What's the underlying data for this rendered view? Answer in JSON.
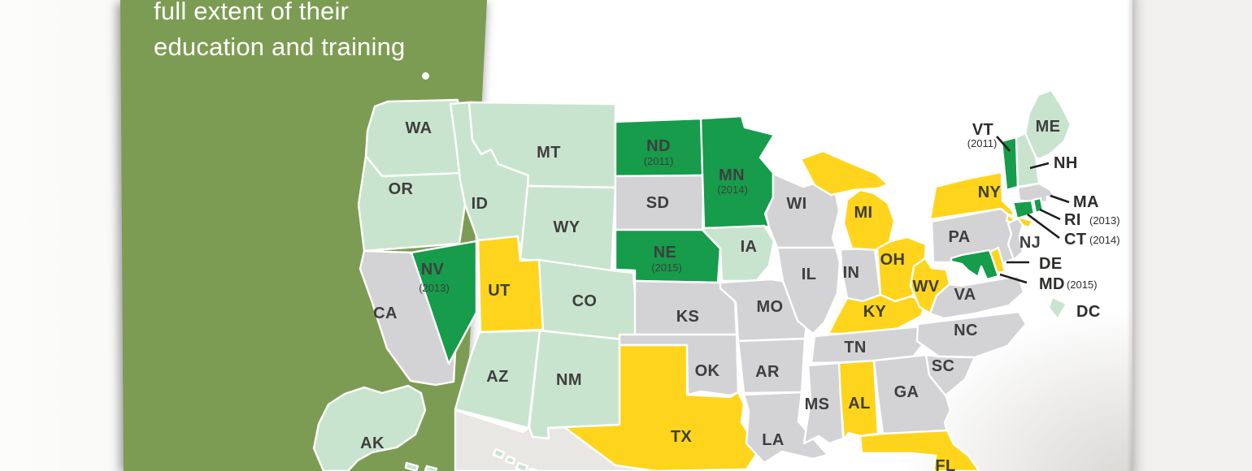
{
  "panel": {
    "background_color": "#7d9c53",
    "text_color": "#ffffff",
    "lines": [
      "full extent of their",
      "education and training"
    ]
  },
  "map": {
    "category_colors": {
      "dark_green": "#169c4b",
      "light_green": "#c9e4ce",
      "yellow": "#ffd41c",
      "gray": "#d3d2d4",
      "neighbor_land": "#e9e7e4"
    },
    "label_color": "#3e3e3e",
    "states": [
      {
        "id": "WA",
        "label": "WA",
        "category": "light_green"
      },
      {
        "id": "OR",
        "label": "OR",
        "category": "light_green"
      },
      {
        "id": "CA",
        "label": "CA",
        "category": "gray"
      },
      {
        "id": "NV",
        "label": "NV",
        "year": "(2013)",
        "category": "dark_green"
      },
      {
        "id": "ID",
        "label": "ID",
        "category": "light_green"
      },
      {
        "id": "MT",
        "label": "MT",
        "category": "light_green"
      },
      {
        "id": "WY",
        "label": "WY",
        "category": "light_green"
      },
      {
        "id": "UT",
        "label": "UT",
        "category": "yellow"
      },
      {
        "id": "CO",
        "label": "CO",
        "category": "light_green"
      },
      {
        "id": "AZ",
        "label": "AZ",
        "category": "light_green"
      },
      {
        "id": "NM",
        "label": "NM",
        "category": "light_green"
      },
      {
        "id": "AK",
        "label": "AK",
        "category": "light_green"
      },
      {
        "id": "HI",
        "label": "",
        "category": "light_green"
      },
      {
        "id": "ND",
        "label": "ND",
        "year": "(2011)",
        "category": "dark_green"
      },
      {
        "id": "SD",
        "label": "SD",
        "category": "gray"
      },
      {
        "id": "NE",
        "label": "NE",
        "year": "(2015)",
        "category": "dark_green"
      },
      {
        "id": "KS",
        "label": "KS",
        "category": "gray"
      },
      {
        "id": "OK",
        "label": "OK",
        "category": "gray"
      },
      {
        "id": "TX",
        "label": "TX",
        "category": "yellow"
      },
      {
        "id": "MN",
        "label": "MN",
        "year": "(2014)",
        "category": "dark_green"
      },
      {
        "id": "IA",
        "label": "IA",
        "category": "light_green"
      },
      {
        "id": "MO",
        "label": "MO",
        "category": "gray"
      },
      {
        "id": "AR",
        "label": "AR",
        "category": "gray"
      },
      {
        "id": "LA",
        "label": "LA",
        "category": "gray"
      },
      {
        "id": "WI",
        "label": "WI",
        "category": "gray"
      },
      {
        "id": "IL",
        "label": "IL",
        "category": "gray"
      },
      {
        "id": "IN",
        "label": "IN",
        "category": "gray"
      },
      {
        "id": "MI",
        "label": "MI",
        "category": "yellow"
      },
      {
        "id": "OH",
        "label": "OH",
        "category": "yellow"
      },
      {
        "id": "KY",
        "label": "KY",
        "category": "yellow"
      },
      {
        "id": "TN",
        "label": "TN",
        "category": "gray"
      },
      {
        "id": "MS",
        "label": "MS",
        "category": "gray"
      },
      {
        "id": "AL",
        "label": "AL",
        "category": "yellow"
      },
      {
        "id": "GA",
        "label": "GA",
        "category": "gray"
      },
      {
        "id": "FL",
        "label": "FL",
        "category": "yellow"
      },
      {
        "id": "WV",
        "label": "WV",
        "category": "yellow"
      },
      {
        "id": "VA",
        "label": "VA",
        "category": "gray"
      },
      {
        "id": "NC",
        "label": "NC",
        "category": "gray"
      },
      {
        "id": "SC",
        "label": "SC",
        "category": "gray"
      },
      {
        "id": "PA",
        "label": "PA",
        "category": "gray"
      },
      {
        "id": "NY",
        "label": "NY",
        "category": "yellow"
      },
      {
        "id": "NJ",
        "label": "NJ",
        "category": "gray"
      },
      {
        "id": "ME",
        "label": "ME",
        "category": "light_green"
      },
      {
        "id": "VT",
        "label": "",
        "category": "dark_green"
      },
      {
        "id": "NH",
        "label": "",
        "category": "light_green"
      },
      {
        "id": "MA",
        "label": "",
        "category": "gray"
      },
      {
        "id": "CT",
        "label": "",
        "category": "dark_green"
      },
      {
        "id": "RI",
        "label": "",
        "category": "dark_green"
      },
      {
        "id": "DE",
        "label": "",
        "category": "yellow"
      },
      {
        "id": "MD",
        "label": "",
        "category": "dark_green"
      },
      {
        "id": "DC",
        "label": "",
        "category": "light_green"
      }
    ],
    "callouts": [
      {
        "id": "VT",
        "label": "VT",
        "year": "(2011)"
      },
      {
        "id": "NH",
        "label": "NH"
      },
      {
        "id": "MA",
        "label": "MA"
      },
      {
        "id": "RI",
        "label": "RI",
        "year": "(2013)"
      },
      {
        "id": "CT",
        "label": "CT",
        "year": "(2014)"
      },
      {
        "id": "DE",
        "label": "DE"
      },
      {
        "id": "MD",
        "label": "MD",
        "year": "(2015)"
      },
      {
        "id": "DC",
        "label": "DC"
      }
    ]
  }
}
